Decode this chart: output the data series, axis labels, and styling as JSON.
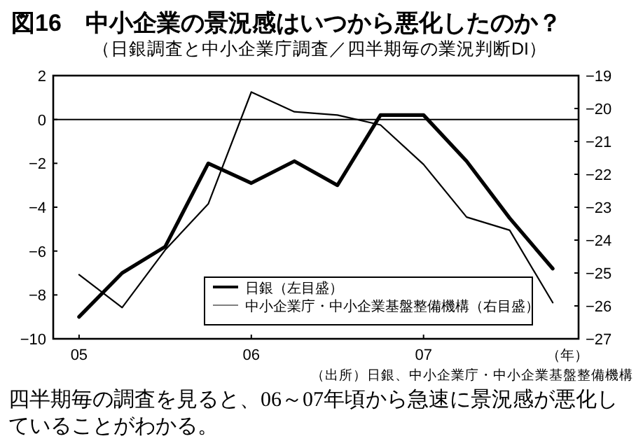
{
  "chart_data": {
    "type": "line",
    "title": "図16　中小企業の景況感はいつから悪化したのか？",
    "subtitle": "（日銀調査と中小企業庁調査／四半期毎の業況判断DI）",
    "xlabel": "（年）",
    "x": [
      2005,
      2005.25,
      2005.5,
      2005.75,
      2006,
      2006.25,
      2006.5,
      2006.75,
      2007,
      2007.25,
      2007.5,
      2007.75
    ],
    "series": [
      {
        "name": "日銀（左目盛）",
        "color": "#000000",
        "values": [
          -9,
          -7,
          -5.8,
          -2,
          -2.9,
          -1.9,
          -3,
          0.2,
          0.2,
          -1.9,
          -4.5,
          -6.8
        ]
      },
      {
        "name": "中小企業庁・中小企業基盤整備機構（右目盛）",
        "color": "#000000",
        "axis": "y2",
        "values": [
          -25.05,
          -26.05,
          -24.3,
          -22.9,
          -19.5,
          -20.1,
          -20.2,
          -20.5,
          -21.7,
          -23.3,
          -23.7,
          -25.9
        ]
      }
    ],
    "xlim": [
      2004.85,
      2007.9
    ],
    "xticks": [
      {
        "value": 2005,
        "label": "05"
      },
      {
        "value": 2006,
        "label": "06"
      },
      {
        "value": 2007,
        "label": "07"
      }
    ],
    "ylim": [
      -10,
      2
    ],
    "yticks": [
      -10,
      -8,
      -6,
      -4,
      -2,
      0,
      2
    ],
    "y2lim": [
      -27,
      -19
    ],
    "y2ticks": [
      -27,
      -26,
      -25,
      -24,
      -23,
      -22,
      -21,
      -20,
      -19
    ],
    "ref_lines": [
      {
        "axis": "y",
        "value": 0
      }
    ],
    "legend": "bottom right",
    "grid": false,
    "marker": "none",
    "line_style": "solid",
    "annotations": [
      "（出所）日銀、中小企業庁・中小企業基盤整備機構",
      "四半期毎の調査を見ると、06～07年頃から急速に景況感が悪化していることがわかる。"
    ]
  }
}
